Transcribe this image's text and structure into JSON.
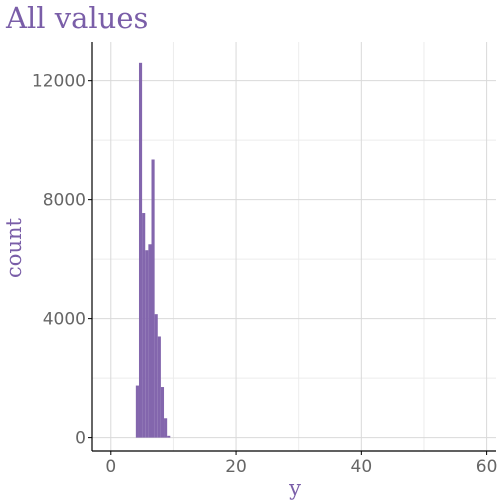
{
  "chart_data": {
    "type": "bar",
    "title": "All values",
    "xlabel": "y",
    "ylabel": "count",
    "xlim": [
      -3,
      61.5
    ],
    "ylim": [
      -450,
      13300
    ],
    "x_ticks": [
      0,
      20,
      40,
      60
    ],
    "y_ticks": [
      0,
      4000,
      8000,
      12000
    ],
    "x_tick_labels": [
      "0",
      "20",
      "40",
      "60"
    ],
    "y_tick_labels": [
      "0",
      "4000",
      "8000",
      "12000"
    ],
    "grid": true,
    "bin_width": 0.5,
    "bins": [
      {
        "x": 4.25,
        "count": 1750
      },
      {
        "x": 4.75,
        "count": 12600
      },
      {
        "x": 5.25,
        "count": 7550
      },
      {
        "x": 5.75,
        "count": 6300
      },
      {
        "x": 6.25,
        "count": 6500
      },
      {
        "x": 6.75,
        "count": 9350
      },
      {
        "x": 7.25,
        "count": 4150
      },
      {
        "x": 7.75,
        "count": 3400
      },
      {
        "x": 8.25,
        "count": 1700
      },
      {
        "x": 8.75,
        "count": 650
      },
      {
        "x": 9.25,
        "count": 60
      }
    ],
    "colors": {
      "bar": "#8366ad",
      "title": "#7a5ea8",
      "axis": "#000000",
      "grid": "#d9d9d9",
      "tick_label": "#666666"
    }
  }
}
